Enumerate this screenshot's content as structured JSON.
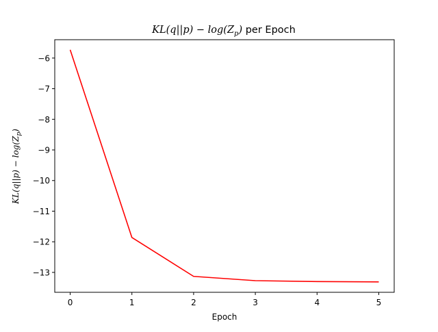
{
  "chart_data": {
    "type": "line",
    "title": {
      "math": "KL(q||p) − log(Z",
      "sub": "p",
      "close": ")",
      "rest": " per Epoch"
    },
    "xlabel": "Epoch",
    "ylabel": {
      "math": "KL(q||p) − log(Z",
      "sub": "p",
      "close": ")"
    },
    "x": [
      0,
      1,
      2,
      3,
      4,
      5
    ],
    "series": [
      {
        "values": [
          -5.73,
          -11.86,
          -13.13,
          -13.27,
          -13.3,
          -13.31
        ],
        "color": "#ff0000"
      }
    ],
    "xlim": [
      -0.25,
      5.25
    ],
    "ylim": [
      -13.65,
      -5.4
    ],
    "xticks": [
      0,
      1,
      2,
      3,
      4,
      5
    ],
    "yticks": [
      -6,
      -7,
      -8,
      -9,
      -10,
      -11,
      -12,
      -13
    ],
    "xtick_labels": [
      "0",
      "1",
      "2",
      "3",
      "4",
      "5"
    ],
    "ytick_labels": [
      "−6",
      "−7",
      "−8",
      "−9",
      "−10",
      "−11",
      "−12",
      "−13"
    ],
    "grid": false,
    "legend": "none"
  }
}
